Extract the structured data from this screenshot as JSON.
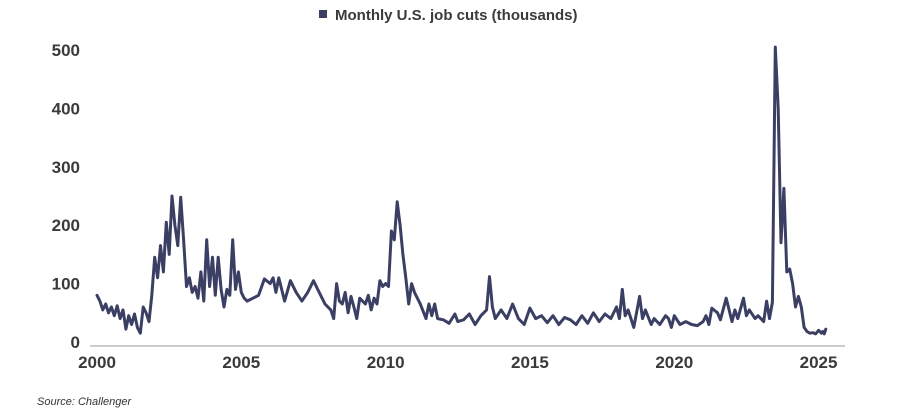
{
  "chart_data": {
    "type": "line",
    "legend": "Monthly U.S. job cuts (thousands)",
    "legend_position": "top-center",
    "source": "Source: Challenger",
    "series_color": "#3b3f63",
    "ylim": [
      0,
      500
    ],
    "yticks": [
      0,
      100,
      200,
      300,
      400,
      500
    ],
    "xlim": [
      2000,
      2025.5
    ],
    "xticks": [
      2000,
      2005,
      2010,
      2015,
      2020,
      2025
    ],
    "grid": false,
    "x_unit": "year",
    "points": [
      [
        2000.0,
        80
      ],
      [
        2000.1,
        70
      ],
      [
        2000.2,
        55
      ],
      [
        2000.3,
        65
      ],
      [
        2000.4,
        50
      ],
      [
        2000.5,
        60
      ],
      [
        2000.6,
        45
      ],
      [
        2000.7,
        62
      ],
      [
        2000.8,
        40
      ],
      [
        2000.9,
        55
      ],
      [
        2001.0,
        22
      ],
      [
        2001.1,
        45
      ],
      [
        2001.2,
        30
      ],
      [
        2001.3,
        48
      ],
      [
        2001.4,
        25
      ],
      [
        2001.5,
        15
      ],
      [
        2001.6,
        60
      ],
      [
        2001.7,
        50
      ],
      [
        2001.8,
        35
      ],
      [
        2001.9,
        80
      ],
      [
        2002.0,
        145
      ],
      [
        2002.1,
        110
      ],
      [
        2002.2,
        165
      ],
      [
        2002.3,
        120
      ],
      [
        2002.4,
        205
      ],
      [
        2002.5,
        150
      ],
      [
        2002.6,
        250
      ],
      [
        2002.7,
        200
      ],
      [
        2002.8,
        165
      ],
      [
        2002.9,
        248
      ],
      [
        2003.0,
        175
      ],
      [
        2003.1,
        95
      ],
      [
        2003.2,
        110
      ],
      [
        2003.3,
        85
      ],
      [
        2003.4,
        95
      ],
      [
        2003.5,
        75
      ],
      [
        2003.6,
        120
      ],
      [
        2003.7,
        70
      ],
      [
        2003.8,
        175
      ],
      [
        2003.9,
        95
      ],
      [
        2004.0,
        145
      ],
      [
        2004.1,
        80
      ],
      [
        2004.2,
        145
      ],
      [
        2004.3,
        90
      ],
      [
        2004.4,
        60
      ],
      [
        2004.5,
        90
      ],
      [
        2004.6,
        80
      ],
      [
        2004.7,
        175
      ],
      [
        2004.8,
        90
      ],
      [
        2004.9,
        120
      ],
      [
        2005.0,
        85
      ],
      [
        2005.1,
        75
      ],
      [
        2005.2,
        70
      ],
      [
        2005.4,
        75
      ],
      [
        2005.6,
        80
      ],
      [
        2005.8,
        108
      ],
      [
        2006.0,
        100
      ],
      [
        2006.1,
        110
      ],
      [
        2006.2,
        85
      ],
      [
        2006.3,
        110
      ],
      [
        2006.5,
        70
      ],
      [
        2006.7,
        105
      ],
      [
        2006.9,
        85
      ],
      [
        2007.1,
        70
      ],
      [
        2007.3,
        85
      ],
      [
        2007.5,
        105
      ],
      [
        2007.7,
        85
      ],
      [
        2007.9,
        65
      ],
      [
        2008.1,
        55
      ],
      [
        2008.2,
        40
      ],
      [
        2008.3,
        100
      ],
      [
        2008.4,
        70
      ],
      [
        2008.5,
        65
      ],
      [
        2008.6,
        85
      ],
      [
        2008.7,
        50
      ],
      [
        2008.8,
        78
      ],
      [
        2008.9,
        60
      ],
      [
        2009.0,
        40
      ],
      [
        2009.1,
        75
      ],
      [
        2009.2,
        70
      ],
      [
        2009.3,
        65
      ],
      [
        2009.4,
        80
      ],
      [
        2009.5,
        55
      ],
      [
        2009.6,
        75
      ],
      [
        2009.7,
        65
      ],
      [
        2009.8,
        105
      ],
      [
        2009.9,
        95
      ],
      [
        2010.0,
        100
      ],
      [
        2010.1,
        95
      ],
      [
        2010.2,
        190
      ],
      [
        2010.3,
        175
      ],
      [
        2010.4,
        240
      ],
      [
        2010.5,
        200
      ],
      [
        2010.6,
        150
      ],
      [
        2010.7,
        110
      ],
      [
        2010.8,
        65
      ],
      [
        2010.9,
        100
      ],
      [
        2011.0,
        85
      ],
      [
        2011.2,
        65
      ],
      [
        2011.4,
        40
      ],
      [
        2011.5,
        65
      ],
      [
        2011.6,
        45
      ],
      [
        2011.7,
        65
      ],
      [
        2011.8,
        40
      ],
      [
        2012.0,
        38
      ],
      [
        2012.2,
        32
      ],
      [
        2012.4,
        48
      ],
      [
        2012.5,
        35
      ],
      [
        2012.7,
        38
      ],
      [
        2012.9,
        48
      ],
      [
        2013.1,
        30
      ],
      [
        2013.3,
        45
      ],
      [
        2013.5,
        55
      ],
      [
        2013.6,
        112
      ],
      [
        2013.7,
        60
      ],
      [
        2013.8,
        40
      ],
      [
        2014.0,
        55
      ],
      [
        2014.2,
        40
      ],
      [
        2014.4,
        65
      ],
      [
        2014.6,
        40
      ],
      [
        2014.8,
        30
      ],
      [
        2015.0,
        58
      ],
      [
        2015.2,
        40
      ],
      [
        2015.4,
        45
      ],
      [
        2015.6,
        33
      ],
      [
        2015.8,
        45
      ],
      [
        2016.0,
        30
      ],
      [
        2016.2,
        42
      ],
      [
        2016.4,
        38
      ],
      [
        2016.6,
        30
      ],
      [
        2016.8,
        45
      ],
      [
        2017.0,
        32
      ],
      [
        2017.2,
        50
      ],
      [
        2017.4,
        35
      ],
      [
        2017.6,
        48
      ],
      [
        2017.8,
        40
      ],
      [
        2018.0,
        60
      ],
      [
        2018.1,
        40
      ],
      [
        2018.2,
        90
      ],
      [
        2018.3,
        45
      ],
      [
        2018.4,
        55
      ],
      [
        2018.6,
        25
      ],
      [
        2018.8,
        78
      ],
      [
        2018.9,
        40
      ],
      [
        2019.0,
        55
      ],
      [
        2019.2,
        30
      ],
      [
        2019.3,
        40
      ],
      [
        2019.5,
        30
      ],
      [
        2019.7,
        45
      ],
      [
        2019.8,
        40
      ],
      [
        2019.9,
        25
      ],
      [
        2020.0,
        45
      ],
      [
        2020.2,
        30
      ],
      [
        2020.4,
        35
      ],
      [
        2020.6,
        30
      ],
      [
        2020.8,
        28
      ],
      [
        2021.0,
        35
      ],
      [
        2021.1,
        45
      ],
      [
        2021.2,
        30
      ],
      [
        2021.3,
        58
      ],
      [
        2021.5,
        50
      ],
      [
        2021.6,
        38
      ],
      [
        2021.8,
        75
      ],
      [
        2021.9,
        55
      ],
      [
        2022.0,
        35
      ],
      [
        2022.1,
        55
      ],
      [
        2022.2,
        40
      ],
      [
        2022.4,
        75
      ],
      [
        2022.5,
        45
      ],
      [
        2022.6,
        55
      ],
      [
        2022.8,
        40
      ],
      [
        2022.9,
        45
      ],
      [
        2023.0,
        40
      ],
      [
        2023.1,
        35
      ],
      [
        2023.2,
        70
      ],
      [
        2023.3,
        40
      ],
      [
        2023.4,
        68
      ],
      [
        2023.5,
        505
      ],
      [
        2023.6,
        400
      ],
      [
        2023.7,
        170
      ],
      [
        2023.8,
        263
      ],
      [
        2023.9,
        120
      ],
      [
        2024.0,
        125
      ],
      [
        2024.1,
        100
      ],
      [
        2024.2,
        60
      ],
      [
        2024.3,
        78
      ],
      [
        2024.4,
        60
      ],
      [
        2024.5,
        25
      ],
      [
        2024.6,
        18
      ],
      [
        2024.7,
        15
      ],
      [
        2024.8,
        16
      ],
      [
        2024.9,
        14
      ],
      [
        2025.0,
        20
      ],
      [
        2025.1,
        15
      ],
      [
        2025.15,
        18
      ],
      [
        2025.2,
        14
      ],
      [
        2025.25,
        22
      ]
    ]
  }
}
